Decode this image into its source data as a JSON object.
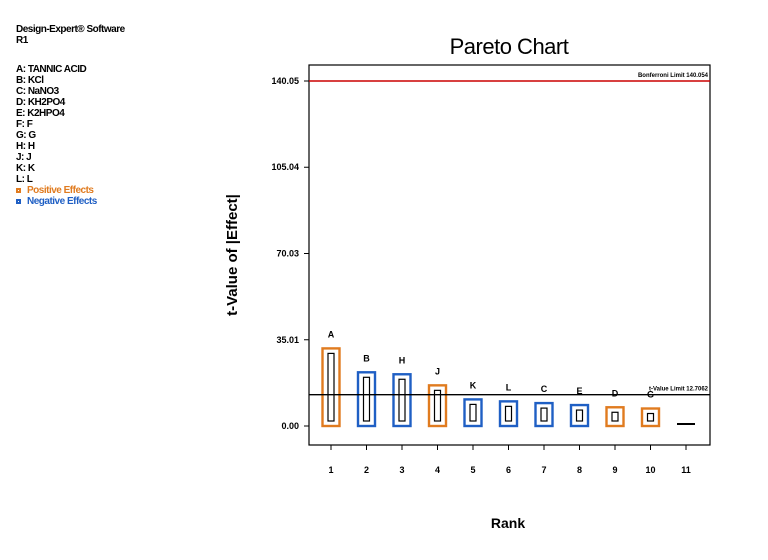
{
  "sidebar": {
    "software": "Design-Expert® Software",
    "response": "R1",
    "factors": [
      "A: TANNIC ACID",
      "B: KCl",
      "C: NaNO3",
      "D: KH2PO4",
      "E: K2HPO4",
      "F: F",
      "G: G",
      "H: H",
      "J: J",
      "K: K",
      "L: L"
    ],
    "legend": [
      {
        "label": "Positive Effects",
        "color": "#E07B1F"
      },
      {
        "label": "Negative Effects",
        "color": "#1F5FC4"
      }
    ]
  },
  "chart_data": {
    "type": "bar",
    "title": "Pareto Chart",
    "xlabel": "Rank",
    "ylabel": "t-Value of |Effect|",
    "ylim": [
      0,
      140.05
    ],
    "yticks": [
      "0.00",
      "35.01",
      "70.03",
      "105.04",
      "140.05"
    ],
    "ytick_values": [
      0,
      35.01,
      70.03,
      105.04,
      140.05
    ],
    "categories": [
      "1",
      "2",
      "3",
      "4",
      "5",
      "6",
      "7",
      "8",
      "9",
      "10",
      "11"
    ],
    "bar_labels": [
      "A",
      "B",
      "H",
      "J",
      "K",
      "L",
      "C",
      "E",
      "D",
      "G",
      ""
    ],
    "values": [
      31.5,
      21.8,
      21.0,
      16.5,
      10.8,
      10.0,
      9.3,
      8.5,
      7.6,
      7.1,
      0.8
    ],
    "effect_sign": [
      "positive",
      "negative",
      "negative",
      "positive",
      "negative",
      "negative",
      "negative",
      "negative",
      "positive",
      "positive",
      "negative"
    ],
    "positive_color": "#E07B1F",
    "negative_color": "#1F5FC4",
    "reference_lines": [
      {
        "label": "Bonferroni Limit 140.054",
        "value": 140.05,
        "color": "#CC0000"
      },
      {
        "label": "t-Value Limit 12.7062",
        "value": 12.71,
        "color": "#000000"
      }
    ]
  }
}
